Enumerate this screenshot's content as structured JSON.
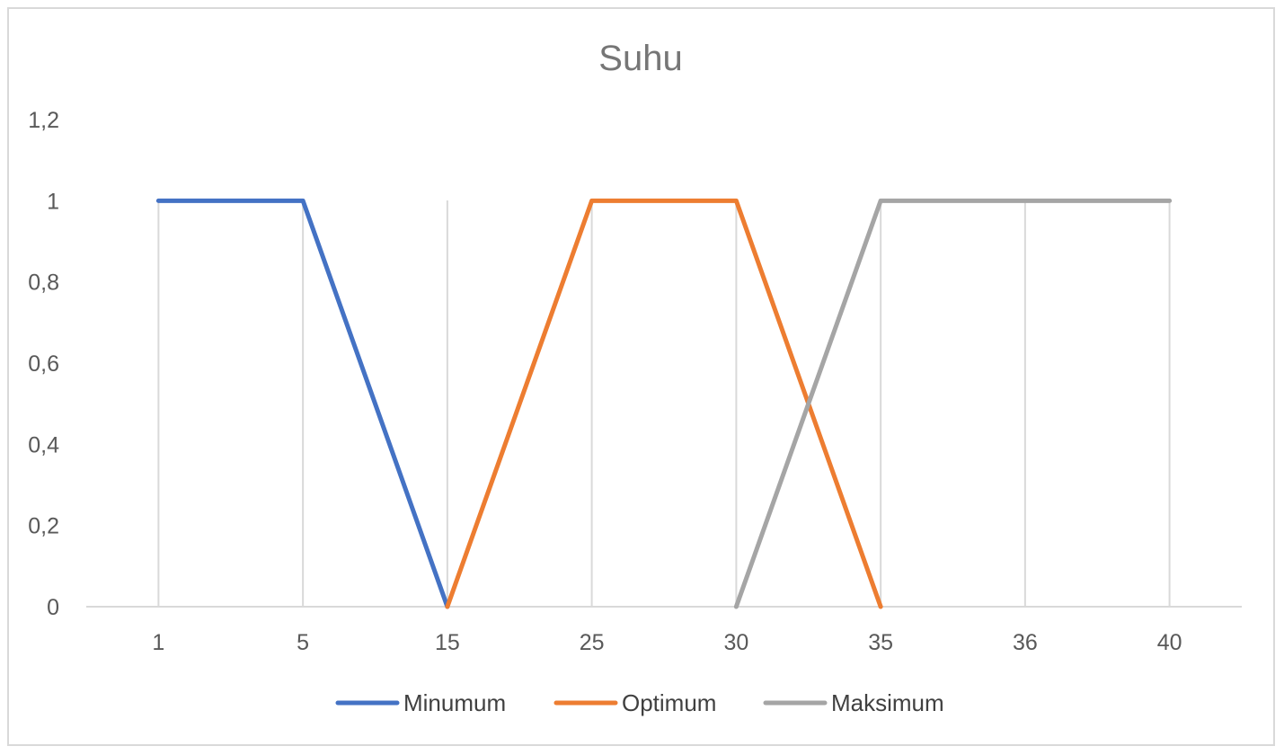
{
  "chart_data": {
    "type": "line",
    "title": "Suhu",
    "categories": [
      "1",
      "5",
      "15",
      "25",
      "30",
      "35",
      "36",
      "40"
    ],
    "y_ticks": [
      "0",
      "0,2",
      "0,4",
      "0,6",
      "0,8",
      "1",
      "1,2"
    ],
    "ylim": [
      0,
      1.2
    ],
    "grid": "vertical",
    "legend_position": "bottom",
    "series": [
      {
        "name": "Minumum",
        "color": "#4472c4",
        "values": [
          1,
          1,
          0,
          null,
          null,
          null,
          null,
          null
        ]
      },
      {
        "name": "Optimum",
        "color": "#ed7d31",
        "values": [
          null,
          null,
          0,
          1,
          1,
          0,
          null,
          null
        ]
      },
      {
        "name": "Maksimum",
        "color": "#a5a5a5",
        "values": [
          null,
          null,
          null,
          null,
          0,
          1,
          1,
          1
        ]
      }
    ]
  }
}
